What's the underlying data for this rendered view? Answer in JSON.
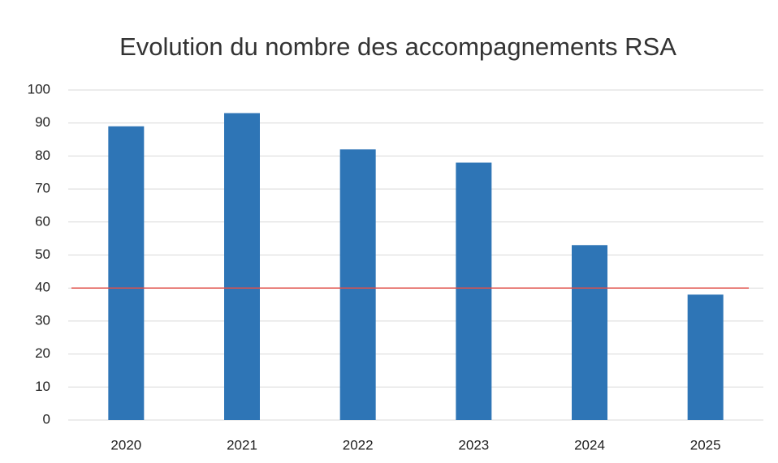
{
  "chart_data": {
    "type": "bar",
    "title": "Evolution du nombre des accompagnements RSA",
    "categories": [
      "2020",
      "2021",
      "2022",
      "2023",
      "2024",
      "2025"
    ],
    "values": [
      89,
      93,
      82,
      78,
      53,
      38
    ],
    "color": "#2e75b6",
    "ylim": [
      0,
      100
    ],
    "yticks": [
      0,
      10,
      20,
      30,
      40,
      50,
      60,
      70,
      80,
      90,
      100
    ],
    "grid": true,
    "reference_line": {
      "value": 40,
      "color": "#e0504a"
    }
  }
}
